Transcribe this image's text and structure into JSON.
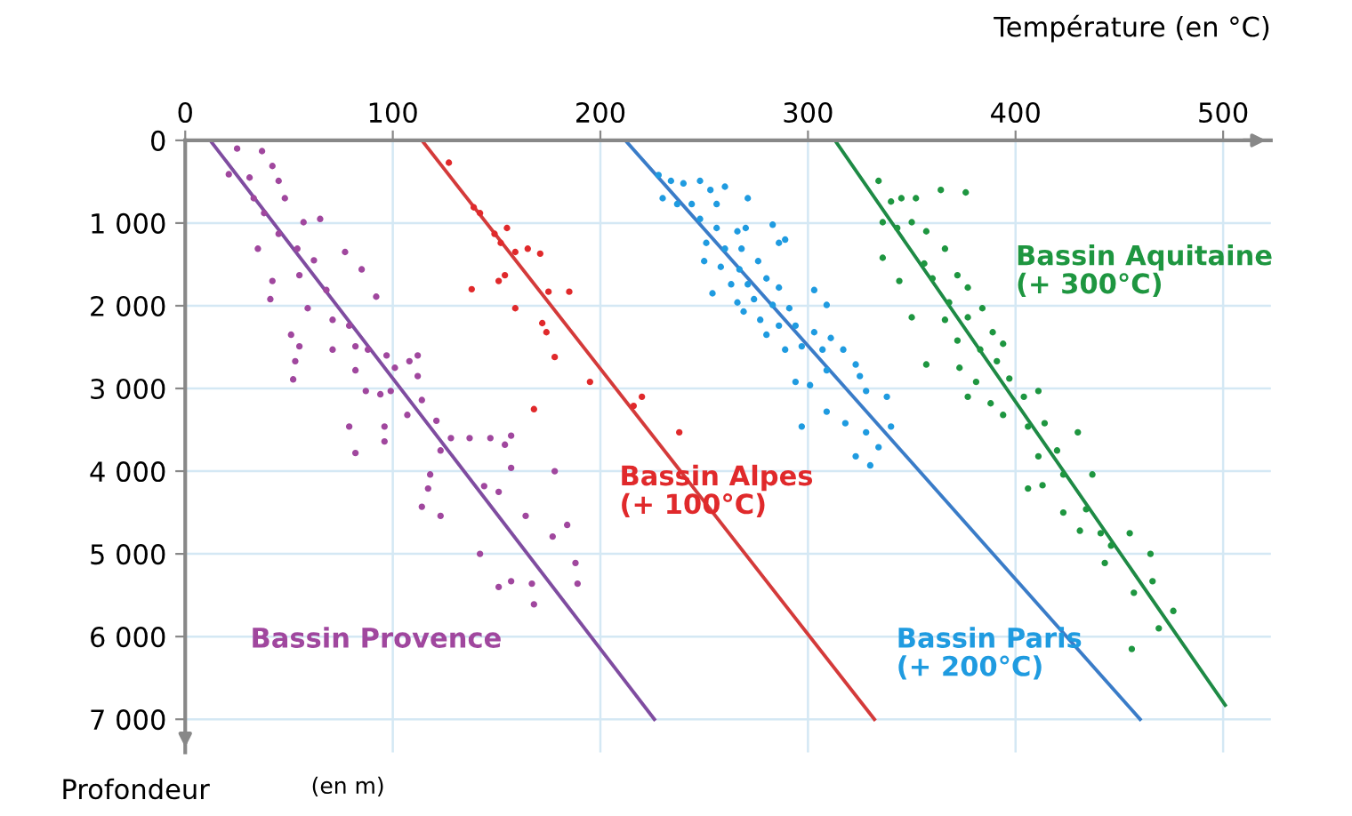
{
  "chart_data": {
    "type": "scatter",
    "xlabel": "Température (en °C)",
    "ylabel": "Profondeur",
    "annotations": [
      "(en m)"
    ],
    "xlim": [
      0,
      523
    ],
    "ylim": [
      7400,
      0
    ],
    "xticks": [
      0,
      100,
      200,
      300,
      400,
      500
    ],
    "yticks": [
      0,
      {
        "value": 1000,
        "label": "1 000"
      },
      {
        "value": 2000,
        "label": "2 000"
      },
      {
        "value": 3000,
        "label": "3 000"
      },
      {
        "value": 4000,
        "label": "4 000"
      },
      {
        "value": 5000,
        "label": "5 000"
      },
      {
        "value": 6000,
        "label": "6 000"
      },
      {
        "value": 7000,
        "label": "7 000"
      }
    ],
    "grid": true,
    "legend": false,
    "series": [
      {
        "name": "Bassin Provence",
        "marker": "circle",
        "color": "#a0479e",
        "x": [
          25,
          37,
          21,
          31,
          42,
          45,
          33,
          38,
          48,
          57,
          65,
          35,
          45,
          54,
          62,
          41,
          42,
          55,
          68,
          77,
          85,
          92,
          59,
          71,
          79,
          51,
          55,
          71,
          53,
          52,
          82,
          88,
          97,
          82,
          87,
          94,
          101,
          108,
          112,
          99,
          107,
          114,
          112,
          79,
          82,
          96,
          96,
          121,
          128,
          123,
          137,
          147,
          154,
          157,
          118,
          117,
          114,
          123,
          144,
          151,
          157,
          164,
          177,
          184,
          178,
          142,
          151,
          157,
          167,
          168,
          188,
          189
        ],
        "values": [
          100,
          130,
          410,
          450,
          310,
          490,
          700,
          880,
          700,
          990,
          950,
          1310,
          1130,
          1310,
          1450,
          1920,
          1700,
          1630,
          1810,
          1350,
          1560,
          1890,
          2030,
          2170,
          2240,
          2350,
          2490,
          2530,
          2670,
          2890,
          2490,
          2530,
          2600,
          2780,
          3030,
          3070,
          2750,
          2670,
          2600,
          3030,
          3320,
          3140,
          2850,
          3460,
          3780,
          3640,
          3460,
          3390,
          3600,
          3750,
          3600,
          3600,
          3680,
          3570,
          4040,
          4210,
          4430,
          4540,
          4180,
          4250,
          3960,
          4540,
          4790,
          4650,
          4000,
          5000,
          5400,
          5330,
          5360,
          5610,
          5110,
          5360
        ]
      },
      {
        "name": "Bassin Alpes\n(+ 100°C)",
        "marker": "circle",
        "color": "#e0292b",
        "x": [
          127,
          139,
          142,
          149,
          155,
          152,
          159,
          165,
          171,
          138,
          151,
          154,
          159,
          172,
          174,
          175,
          185,
          178,
          195,
          168,
          216,
          220,
          238
        ],
        "values": [
          270,
          810,
          880,
          1130,
          1060,
          1240,
          1350,
          1310,
          1370,
          1800,
          1700,
          1630,
          2030,
          2210,
          2320,
          1830,
          1830,
          2620,
          2920,
          3250,
          3210,
          3100,
          3530
        ]
      },
      {
        "name": "Bassin Paris\n(+ 200°C)",
        "marker": "circle",
        "color": "#1f9be0",
        "x": [
          228,
          234,
          240,
          248,
          253,
          230,
          237,
          244,
          256,
          248,
          256,
          266,
          270,
          283,
          289,
          251,
          260,
          268,
          250,
          258,
          267,
          276,
          254,
          263,
          271,
          280,
          286,
          266,
          274,
          283,
          291,
          303,
          309,
          277,
          286,
          294,
          303,
          311,
          269,
          280,
          289,
          297,
          307,
          317,
          323,
          294,
          301,
          309,
          325,
          328,
          338,
          297,
          309,
          318,
          328,
          334,
          340,
          330,
          323,
          260,
          271,
          286
        ],
        "values": [
          420,
          490,
          520,
          490,
          600,
          700,
          770,
          770,
          770,
          950,
          1060,
          1100,
          1060,
          1020,
          1200,
          1240,
          1310,
          1310,
          1460,
          1530,
          1560,
          1460,
          1850,
          1740,
          1740,
          1670,
          1780,
          1960,
          1920,
          1990,
          2030,
          1810,
          1990,
          2170,
          2240,
          2240,
          2320,
          2390,
          2070,
          2350,
          2530,
          2490,
          2530,
          2530,
          2710,
          2920,
          2960,
          2780,
          2850,
          3030,
          3100,
          3460,
          3280,
          3420,
          3530,
          3710,
          3460,
          3930,
          3820,
          560,
          700,
          1240
        ]
      },
      {
        "name": "Bassin Aquitaine\n(+ 300°C)",
        "marker": "circle",
        "color": "#1e9640",
        "x": [
          334,
          340,
          345,
          352,
          364,
          376,
          336,
          343,
          350,
          357,
          366,
          336,
          344,
          356,
          360,
          372,
          377,
          368,
          350,
          366,
          377,
          384,
          389,
          394,
          372,
          383,
          357,
          373,
          381,
          391,
          397,
          377,
          388,
          404,
          411,
          394,
          406,
          414,
          430,
          411,
          420,
          406,
          413,
          423,
          437,
          423,
          434,
          431,
          441,
          446,
          455,
          465,
          443,
          457,
          466,
          476,
          469,
          456
        ],
        "values": [
          490,
          740,
          700,
          700,
          600,
          630,
          990,
          1060,
          990,
          1100,
          1310,
          1420,
          1700,
          1490,
          1670,
          1630,
          1780,
          1960,
          2140,
          2170,
          2140,
          2030,
          2320,
          2460,
          2420,
          2530,
          2710,
          2750,
          2920,
          2670,
          2880,
          3100,
          3180,
          3100,
          3030,
          3320,
          3460,
          3420,
          3530,
          3820,
          3750,
          4210,
          4170,
          4040,
          4040,
          4500,
          4460,
          4720,
          4750,
          4900,
          4750,
          5000,
          5110,
          5470,
          5330,
          5690,
          5900,
          6150
        ]
      },
      {
        "type": "line",
        "marker": "none",
        "color": "#7f4ca0",
        "x": [
          12,
          226
        ],
        "values": [
          0,
          7000
        ]
      },
      {
        "type": "line",
        "marker": "none",
        "color": "#d43a3a",
        "x": [
          114,
          332
        ],
        "values": [
          0,
          7000
        ]
      },
      {
        "type": "line",
        "marker": "none",
        "color": "#3a7cc8",
        "x": [
          212,
          460
        ],
        "values": [
          0,
          7000
        ]
      },
      {
        "type": "line",
        "marker": "none",
        "color": "#1e8a45",
        "x": [
          313,
          501
        ],
        "values": [
          0,
          6830
        ]
      }
    ]
  }
}
